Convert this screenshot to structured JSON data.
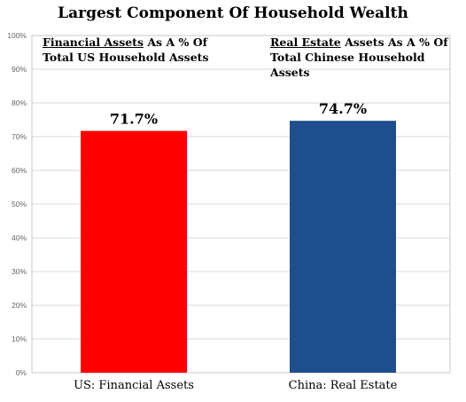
{
  "chart_data": {
    "type": "bar",
    "title": "Largest Component Of Household Wealth",
    "subtitles": [
      {
        "underlined": "Financial Assets",
        "rest_line1": " As A % Of",
        "line2": "Total US Household Assets"
      },
      {
        "underlined": "Real Estate",
        "rest_line1": " Assets As A % Of",
        "line2": "Total Chinese Household Assets"
      }
    ],
    "categories": [
      "US: Financial Assets",
      "China: Real Estate"
    ],
    "values": [
      71.7,
      74.7
    ],
    "data_labels": [
      "71.7%",
      "74.7%"
    ],
    "colors": [
      "#ff0000",
      "#1f4e8c"
    ],
    "ylim": [
      0,
      100
    ],
    "yticks": [
      0,
      10,
      20,
      30,
      40,
      50,
      60,
      70,
      80,
      90,
      100
    ],
    "ytick_labels": [
      "0%",
      "10%",
      "20%",
      "30%",
      "40%",
      "50%",
      "60%",
      "70%",
      "80%",
      "90%",
      "100%"
    ],
    "grid": true,
    "xlabel": "",
    "ylabel": ""
  }
}
